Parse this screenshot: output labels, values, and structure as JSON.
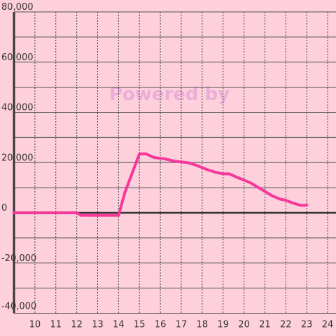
{
  "chart_data": {
    "type": "line",
    "watermark": "Powered by",
    "x": [
      9,
      12,
      12.2,
      14,
      14.3,
      15,
      15.3,
      15.7,
      16.2,
      16.7,
      17.3,
      17.7,
      18,
      18.3,
      18.7,
      19,
      19.3,
      19.7,
      20.3,
      20.7,
      21,
      21.3,
      21.7,
      22,
      22.3,
      22.7,
      23
    ],
    "values": [
      0,
      0,
      -1000,
      -1000,
      8000,
      23500,
      23500,
      22000,
      21500,
      20500,
      20000,
      19000,
      18000,
      17000,
      16000,
      15500,
      15500,
      14000,
      12000,
      10000,
      8500,
      7000,
      5500,
      5000,
      4000,
      3000,
      3000
    ],
    "color": "#f7379a",
    "xlim": [
      9,
      24.4
    ],
    "xticks": [
      10,
      11,
      12,
      13,
      14,
      15,
      16,
      17,
      18,
      19,
      20,
      21,
      22,
      23,
      24
    ],
    "ylim": [
      -40000,
      80000
    ],
    "yticks": [
      {
        "value": -40000,
        "label": "-40,000"
      },
      {
        "value": -20000,
        "label": "-20,000"
      },
      0,
      {
        "value": 20000,
        "label": "20,000"
      },
      {
        "value": 40000,
        "label": "40,000"
      },
      {
        "value": 60000,
        "label": "60,000"
      },
      {
        "value": 80000,
        "label": "80,000"
      }
    ],
    "minor_yticks": [
      -30000,
      -10000,
      10000,
      30000,
      50000,
      70000
    ],
    "grid": true
  }
}
